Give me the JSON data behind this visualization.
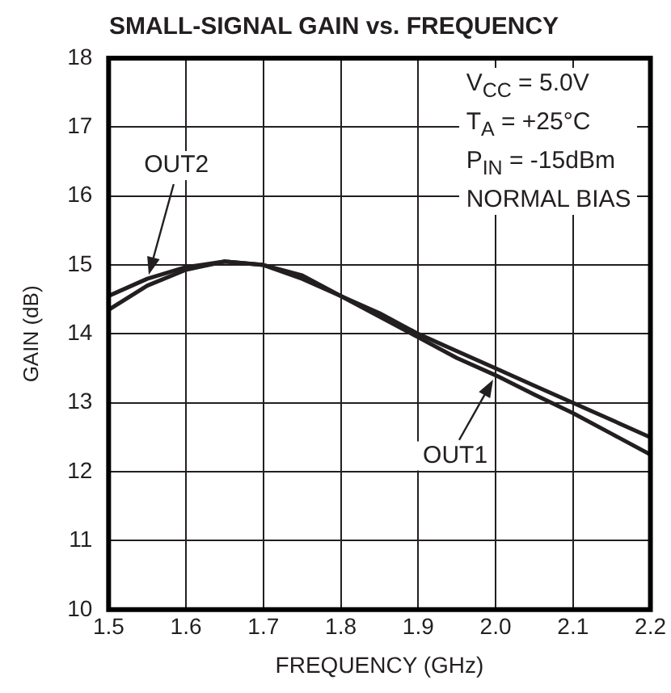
{
  "chart_data": {
    "type": "line",
    "title": "SMALL-SIGNAL GAIN vs. FREQUENCY",
    "xlabel": "FREQUENCY (GHz)",
    "ylabel": "GAIN (dB)",
    "x": [
      1.5,
      1.55,
      1.6,
      1.65,
      1.7,
      1.75,
      1.8,
      1.85,
      1.9,
      1.95,
      2.0,
      2.05,
      2.1,
      2.15,
      2.2
    ],
    "series": [
      {
        "name": "OUT1",
        "color": "#231f20",
        "values": [
          14.35,
          14.7,
          14.93,
          15.05,
          15.0,
          14.8,
          14.55,
          14.25,
          13.95,
          13.65,
          13.4,
          13.12,
          12.85,
          12.55,
          12.25
        ]
      },
      {
        "name": "OUT2",
        "color": "#231f20",
        "values": [
          14.55,
          14.8,
          14.97,
          15.05,
          15.0,
          14.85,
          14.55,
          14.3,
          14.0,
          13.75,
          13.5,
          13.25,
          13.0,
          12.75,
          12.5
        ]
      }
    ],
    "xlim": [
      1.5,
      2.2
    ],
    "xticks": [
      {
        "value": 1.5,
        "label": "1.5"
      },
      {
        "value": 1.6,
        "label": "1.6"
      },
      {
        "value": 1.7,
        "label": "1.7"
      },
      {
        "value": 1.8,
        "label": "1.8"
      },
      {
        "value": 1.9,
        "label": "1.9"
      },
      {
        "value": 2.0,
        "label": "2.0"
      },
      {
        "value": 2.1,
        "label": "2.1"
      },
      {
        "value": 2.2,
        "label": "2.2"
      }
    ],
    "ylim": [
      10,
      18
    ],
    "yticks": [
      10,
      11,
      12,
      13,
      14,
      15,
      16,
      17,
      18
    ],
    "annotations": [
      "V$_{CC}$ = 5.0V",
      "T$_{A}$ = +25°C",
      "P$_{IN}$ = -15dBm",
      "NORMAL BIAS"
    ],
    "grid": true,
    "marker": "none",
    "line_style": "solid"
  }
}
